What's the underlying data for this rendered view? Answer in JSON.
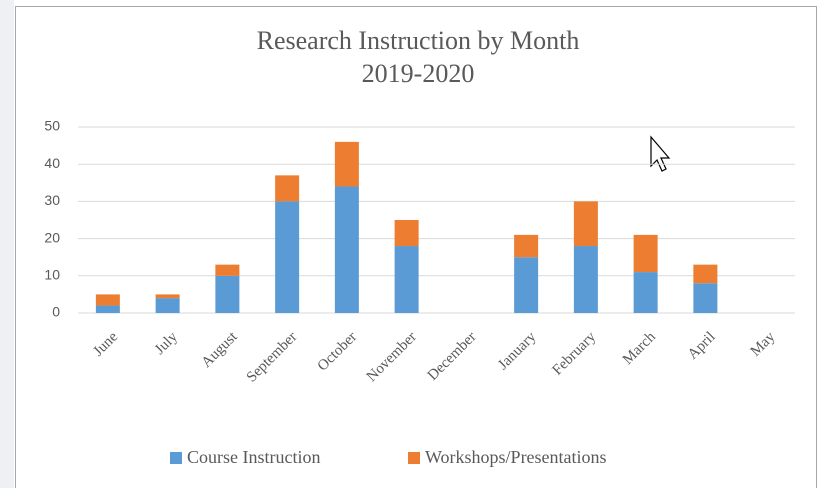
{
  "chart_data": {
    "type": "stacked_bar",
    "title": "Research Instruction by Month",
    "subtitle": "2019-2020",
    "categories": [
      "June",
      "July",
      "August",
      "September",
      "October",
      "November",
      "December",
      "January",
      "February",
      "March",
      "April",
      "May"
    ],
    "series": [
      {
        "name": "Course Instruction",
        "color": "#5b9bd5",
        "values": [
          2,
          4,
          10,
          30,
          34,
          18,
          0,
          15,
          18,
          11,
          8,
          0
        ]
      },
      {
        "name": "Workshops/Presentations",
        "color": "#ed7d31",
        "values": [
          3,
          1,
          3,
          7,
          12,
          7,
          0,
          6,
          12,
          10,
          5,
          0
        ]
      }
    ],
    "ylim": [
      0,
      50
    ],
    "yticks": [
      0,
      10,
      20,
      30,
      40,
      50
    ],
    "grid": true,
    "legend": "bottom"
  }
}
